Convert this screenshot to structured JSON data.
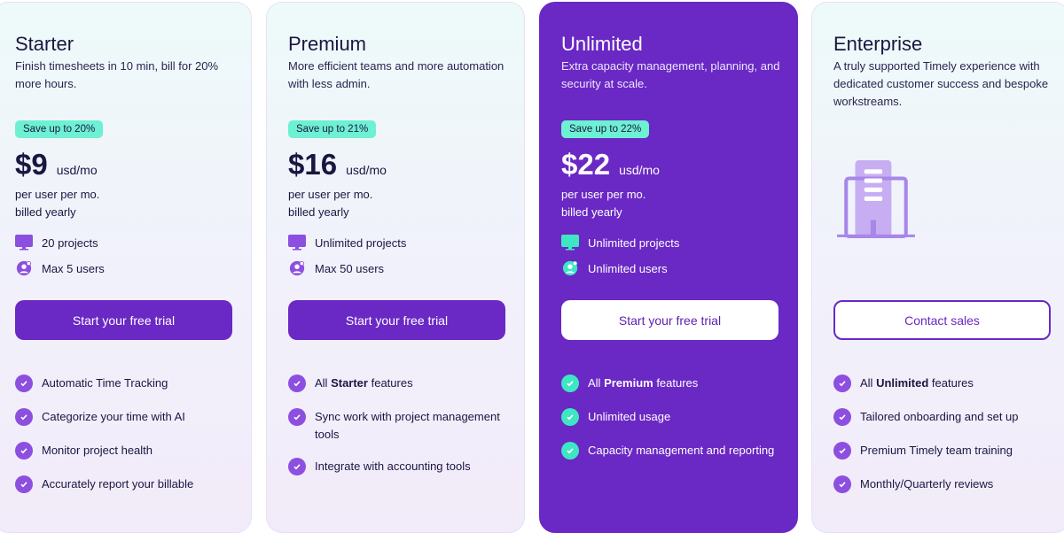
{
  "colors": {
    "brand": "#6a28c4",
    "accent": "#6ef0d2"
  },
  "plans": [
    {
      "name": "Starter",
      "desc": "Finish timesheets in 10 min, bill for 20% more hours.",
      "badge": "Save up to 20%",
      "price": "$9",
      "unit": "usd/mo",
      "per1": "per user per mo.",
      "per2": "billed yearly",
      "projects": "20 projects",
      "users": "Max 5 users",
      "cta": "Start your free trial",
      "features": [
        {
          "pre": "Automatic Time Tracking",
          "bold": "",
          "post": ""
        },
        {
          "pre": "Categorize your time with AI",
          "bold": "",
          "post": ""
        },
        {
          "pre": "Monitor project health",
          "bold": "",
          "post": ""
        },
        {
          "pre": "Accurately report your billable",
          "bold": "",
          "post": ""
        }
      ]
    },
    {
      "name": "Premium",
      "desc": "More efficient teams and more automation with less admin.",
      "badge": "Save up to 21%",
      "price": "$16",
      "unit": "usd/mo",
      "per1": "per user per mo.",
      "per2": "billed yearly",
      "projects": "Unlimited projects",
      "users": "Max 50 users",
      "cta": "Start your free trial",
      "features": [
        {
          "pre": "All ",
          "bold": "Starter",
          "post": " features"
        },
        {
          "pre": "Sync work with project management tools",
          "bold": "",
          "post": ""
        },
        {
          "pre": "Integrate with accounting tools",
          "bold": "",
          "post": ""
        }
      ]
    },
    {
      "name": "Unlimited",
      "desc": "Extra capacity management, planning, and security at scale.",
      "badge": "Save up to 22%",
      "price": "$22",
      "unit": "usd/mo",
      "per1": "per user per mo.",
      "per2": "billed yearly",
      "projects": "Unlimited projects",
      "users": "Unlimited users",
      "cta": "Start your free trial",
      "features": [
        {
          "pre": "All ",
          "bold": "Premium",
          "post": " features"
        },
        {
          "pre": "Unlimited usage",
          "bold": "",
          "post": ""
        },
        {
          "pre": "Capacity management and reporting",
          "bold": "",
          "post": ""
        }
      ]
    },
    {
      "name": "Enterprise",
      "desc": "A truly supported Timely experience with dedicated customer success and bespoke workstreams.",
      "cta": "Contact sales",
      "features": [
        {
          "pre": "All ",
          "bold": "Unlimited",
          "post": " features"
        },
        {
          "pre": "Tailored onboarding and set up",
          "bold": "",
          "post": ""
        },
        {
          "pre": "Premium Timely team training",
          "bold": "",
          "post": ""
        },
        {
          "pre": "Monthly/Quarterly reviews",
          "bold": "",
          "post": ""
        }
      ]
    }
  ]
}
